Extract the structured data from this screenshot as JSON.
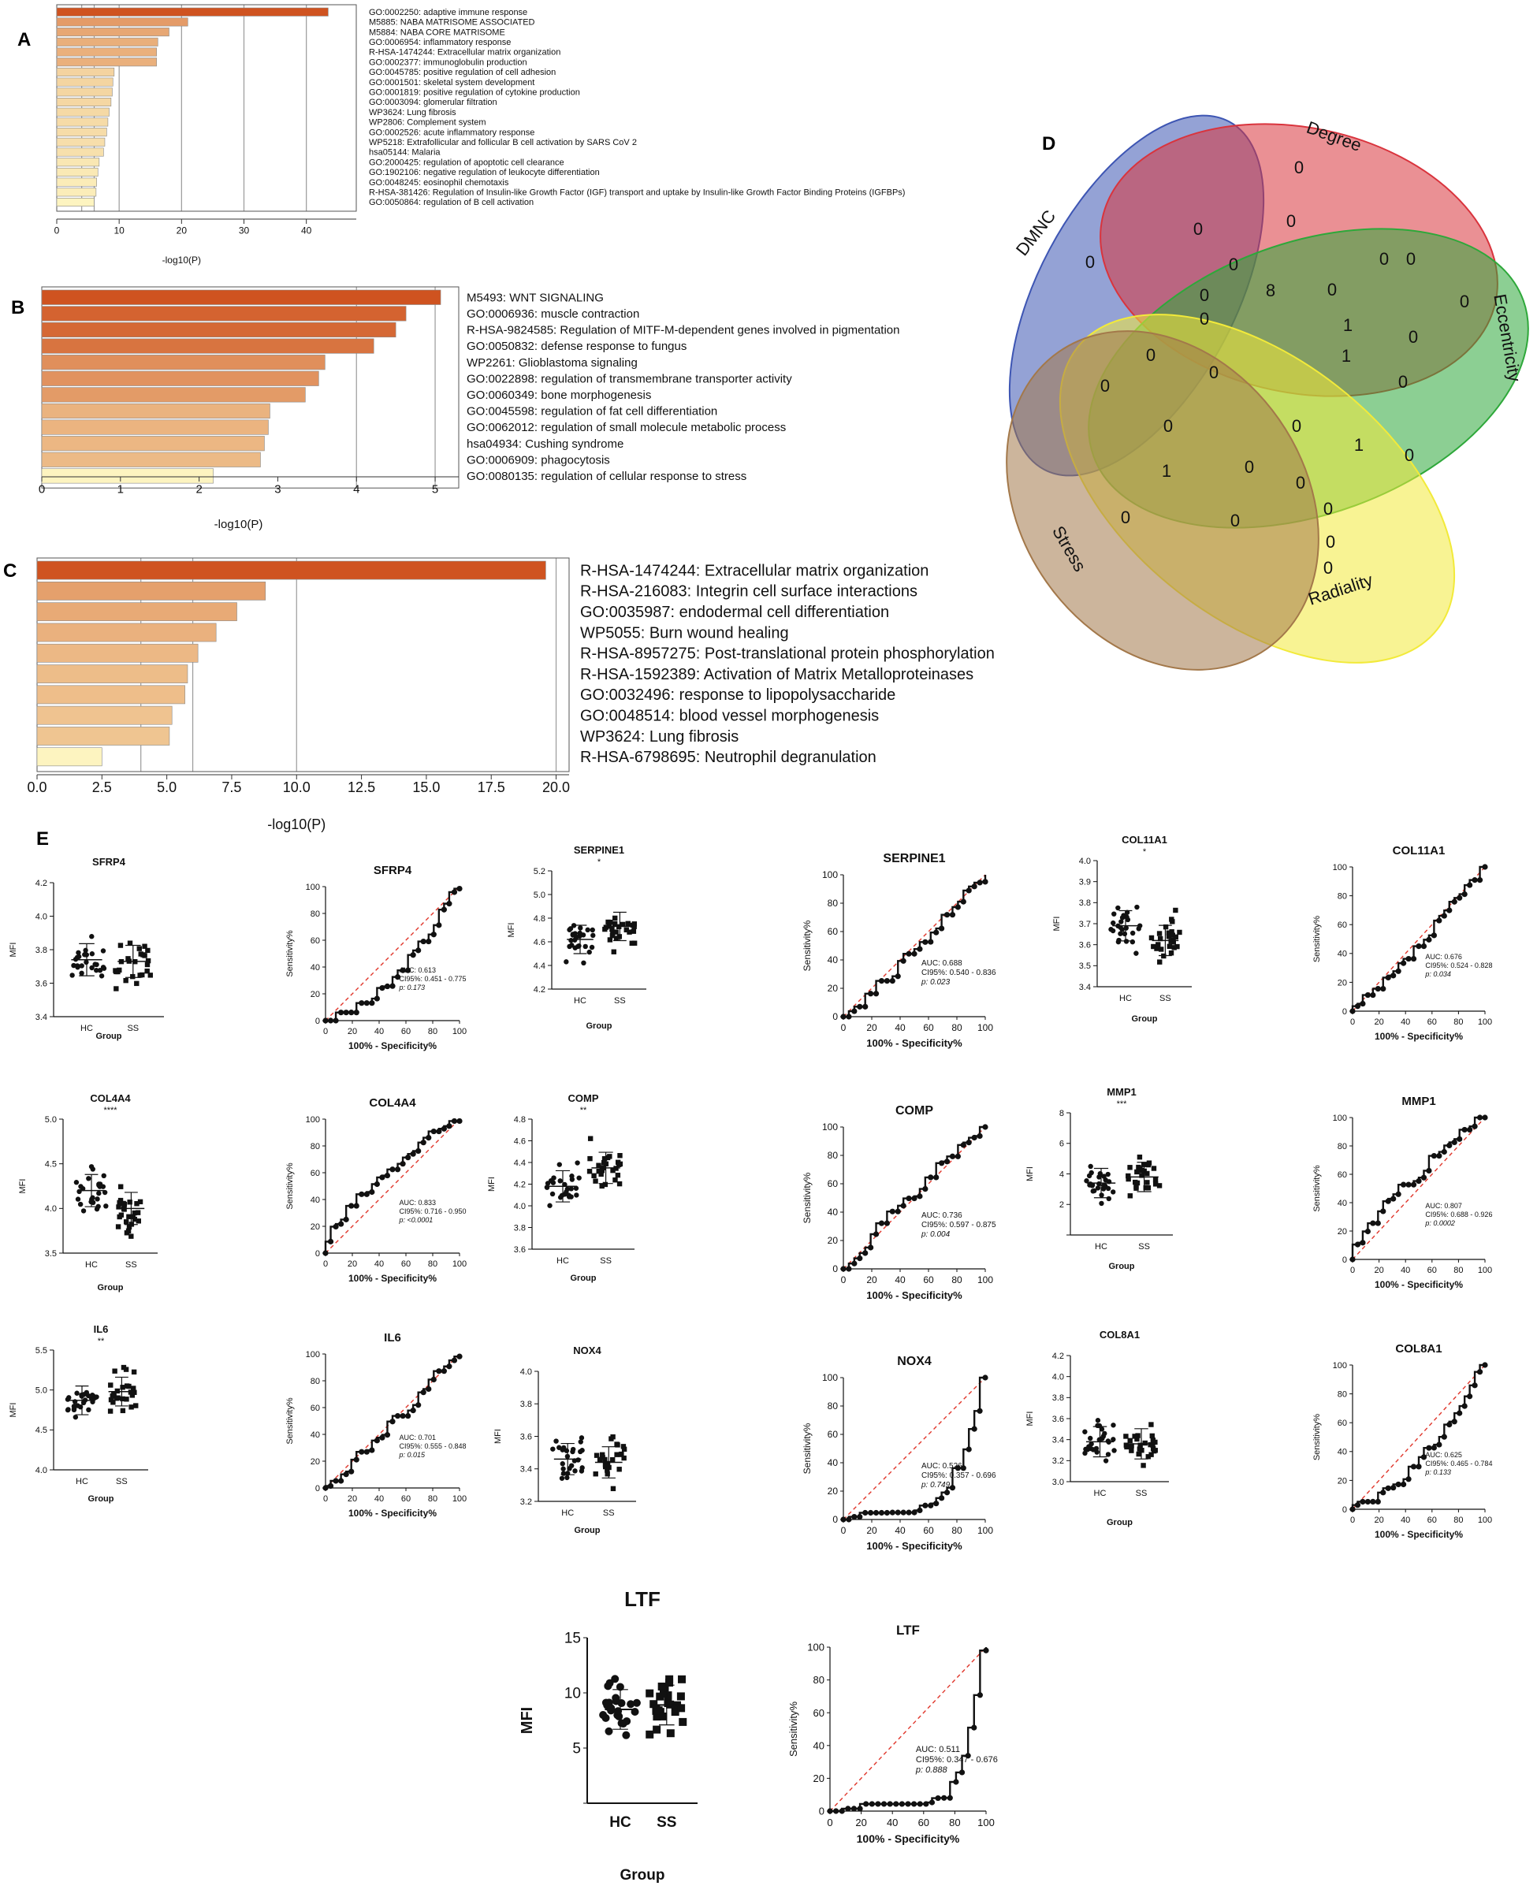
{
  "panel_letters": {
    "A": "A",
    "B": "B",
    "C": "C",
    "D": "D",
    "E": "E"
  },
  "chart_data": [
    {
      "id": "A",
      "type": "bar",
      "orientation": "horizontal",
      "xlabel": "-log10(P)",
      "xlim": [
        0,
        48
      ],
      "xticks": [
        0,
        10,
        20,
        30,
        40
      ],
      "gridlines": [
        4,
        6,
        10,
        20,
        30,
        40
      ],
      "categories": [
        "GO:0002250: adaptive immune response",
        "M5885: NABA MATRISOME ASSOCIATED",
        "M5884: NABA CORE MATRISOME",
        "GO:0006954: inflammatory response",
        "R-HSA-1474244: Extracellular matrix organization",
        "GO:0002377: immunoglobulin production",
        "GO:0045785: positive regulation of cell adhesion",
        "GO:0001501: skeletal system development",
        "GO:0001819: positive regulation of cytokine production",
        "GO:0003094: glomerular filtration",
        "WP3624: Lung fibrosis",
        "WP2806: Complement system",
        "GO:0002526: acute inflammatory response",
        "WP5218: Extrafollicular and follicular B cell activation by SARS CoV 2",
        "hsa05144: Malaria",
        "GO:2000425: regulation of apoptotic cell clearance",
        "GO:1902106: negative regulation of leukocyte differentiation",
        "GO:0048245: eosinophil chemotaxis",
        "R-HSA-381426: Regulation of Insulin-like Growth Factor (IGF) transport and uptake by Insulin-like Growth Factor Binding Proteins (IGFBPs)",
        "GO:0050864: regulation of B cell activation"
      ],
      "values": [
        43.5,
        21,
        18,
        16.2,
        16,
        16,
        9.2,
        9,
        8.9,
        8.7,
        8.4,
        8.2,
        8,
        7.7,
        7.5,
        6.8,
        6.6,
        6.4,
        6.3,
        6
      ]
    },
    {
      "id": "B",
      "type": "bar",
      "orientation": "horizontal",
      "xlabel": "-log10(P)",
      "xlim": [
        0,
        5.3
      ],
      "xticks": [
        0,
        1,
        2,
        3,
        4,
        5
      ],
      "gridlines": [
        4,
        5
      ],
      "categories": [
        "M5493: WNT SIGNALING",
        "GO:0006936: muscle contraction",
        "R-HSA-9824585: Regulation of MITF-M-dependent genes involved in pigmentation",
        "GO:0050832: defense response to fungus",
        "WP2261: Glioblastoma signaling",
        "GO:0022898: regulation of transmembrane transporter activity",
        "GO:0060349: bone morphogenesis",
        "GO:0045598: regulation of fat cell differentiation",
        "GO:0062012: regulation of small molecule metabolic process",
        "hsa04934: Cushing syndrome",
        "GO:0006909: phagocytosis",
        "GO:0080135: regulation of cellular response to stress"
      ],
      "values": [
        5.07,
        4.63,
        4.5,
        4.22,
        3.6,
        3.52,
        3.35,
        2.9,
        2.88,
        2.83,
        2.78,
        2.18
      ]
    },
    {
      "id": "C",
      "type": "bar",
      "orientation": "horizontal",
      "xlabel": "-log10(P)",
      "xlim": [
        0,
        20.5
      ],
      "xticks": [
        0.0,
        2.5,
        5.0,
        7.5,
        10.0,
        12.5,
        15.0,
        17.5,
        20.0
      ],
      "xticklabels": [
        "0.0",
        "2.5",
        "5.0",
        "7.5",
        "10.0",
        "12.5",
        "15.0",
        "17.5",
        "20.0"
      ],
      "gridlines": [
        4,
        6,
        10,
        20
      ],
      "categories": [
        "R-HSA-1474244: Extracellular matrix organization",
        "R-HSA-216083: Integrin cell surface interactions",
        "GO:0035987: endodermal cell differentiation",
        "WP5055: Burn wound healing",
        "R-HSA-8957275: Post-translational protein phosphorylation",
        "R-HSA-1592389: Activation of Matrix Metalloproteinases",
        "GO:0032496: response to lipopolysaccharide",
        "GO:0048514: blood vessel morphogenesis",
        "WP3624: Lung fibrosis",
        "R-HSA-6798695: Neutrophil degranulation"
      ],
      "values": [
        19.6,
        8.8,
        7.7,
        6.9,
        6.2,
        5.8,
        5.7,
        5.2,
        5.1,
        2.5
      ]
    }
  ],
  "venn": {
    "sets": [
      {
        "name": "DMNC",
        "color": "#3d55b3"
      },
      {
        "name": "Degree",
        "color": "#d9343d"
      },
      {
        "name": "Eccentricity",
        "color": "#2ea83a"
      },
      {
        "name": "Radiality",
        "color": "#f2ea3a"
      },
      {
        "name": "Stress",
        "color": "#a3784a"
      }
    ],
    "counts": [
      "0",
      "0",
      "0",
      "0",
      "0",
      "0",
      "0",
      "0",
      "0",
      "0",
      "1",
      "0",
      "0",
      "8",
      "1",
      "0",
      "0",
      "0",
      "0",
      "0",
      "0",
      "1",
      "0",
      "0",
      "1",
      "0",
      "0",
      "0",
      "0",
      "0",
      "0"
    ]
  },
  "scatter_labels": {
    "group_label": "Group",
    "y_label": "MFI",
    "hc": "HC",
    "ss": "SS"
  },
  "roc_labels": {
    "x_label": "100% - Specificity%",
    "y_label": "Sensitivity%"
  },
  "genes": [
    {
      "name": "SFRP4",
      "ylim": [
        3.4,
        4.2
      ],
      "yticks": [
        "3.4",
        "3.6",
        "3.8",
        "4.0",
        "4.2"
      ],
      "sig": "",
      "hc_mean": 3.74,
      "ss_mean": 3.73,
      "auc": "AUC: 0.613",
      "ci": "CI95%: 0.451 - 0.775",
      "p": "p: 0.173"
    },
    {
      "name": "SERPINE1",
      "ylim": [
        4.2,
        5.2
      ],
      "yticks": [
        "4.2",
        "4.4",
        "4.6",
        "4.8",
        "5.0",
        "5.2"
      ],
      "sig": "*",
      "hc_mean": 4.62,
      "ss_mean": 4.73,
      "auc": "AUC: 0.688",
      "ci": "CI95%: 0.540 - 0.836",
      "p": "p: 0.023"
    },
    {
      "name": "COL11A1",
      "ylim": [
        3.4,
        4.0
      ],
      "yticks": [
        "3.4",
        "3.5",
        "3.6",
        "3.7",
        "3.8",
        "3.9",
        "4.0"
      ],
      "sig": "*",
      "hc_mean": 3.69,
      "ss_mean": 3.62,
      "auc": "AUC: 0.676",
      "ci": "CI95%: 0.524 - 0.828",
      "p": "p: 0.034"
    },
    {
      "name": "COL4A4",
      "ylim": [
        3.5,
        5.0
      ],
      "yticks": [
        "3.5",
        "4.0",
        "4.5",
        "5.0"
      ],
      "sig": "****",
      "hc_mean": 4.2,
      "ss_mean": 4.0,
      "auc": "AUC: 0.833",
      "ci": "CI95%: 0.716 - 0.950",
      "p": "p: <0.0001"
    },
    {
      "name": "COMP",
      "ylim": [
        3.6,
        4.8
      ],
      "yticks": [
        "3.6",
        "3.8",
        "4.0",
        "4.2",
        "4.4",
        "4.6",
        "4.8"
      ],
      "sig": "**",
      "hc_mean": 4.18,
      "ss_mean": 4.35,
      "auc": "AUC: 0.736",
      "ci": "CI95%: 0.597 - 0.875",
      "p": "p: 0.004"
    },
    {
      "name": "MMP1",
      "ylim": [
        0,
        8
      ],
      "yticks": [
        "",
        "2",
        "4",
        "6",
        "8"
      ],
      "sig": "***",
      "hc_mean": 3.4,
      "ss_mean": 3.8,
      "auc": "AUC: 0.807",
      "ci": "CI95%: 0.688 - 0.926",
      "p": "p: 0.0002"
    },
    {
      "name": "IL6",
      "ylim": [
        4.0,
        5.5
      ],
      "yticks": [
        "4.0",
        "4.5",
        "5.0",
        "5.5"
      ],
      "sig": "**",
      "hc_mean": 4.87,
      "ss_mean": 4.98,
      "auc": "AUC: 0.701",
      "ci": "CI95%: 0.555 - 0.848",
      "p": "p: 0.015"
    },
    {
      "name": "NOX4",
      "ylim": [
        3.2,
        4.0
      ],
      "yticks": [
        "3.2",
        "3.4",
        "3.6",
        "3.8",
        "4.0"
      ],
      "sig": "",
      "hc_mean": 3.46,
      "ss_mean": 3.44,
      "auc": "AUC: 0.526",
      "ci": "CI95%: 0.357 - 0.696",
      "p": "p: 0.749"
    },
    {
      "name": "COL8A1",
      "ylim": [
        3.0,
        4.2
      ],
      "yticks": [
        "3.0",
        "3.2",
        "3.4",
        "3.6",
        "3.8",
        "4.0",
        "4.2"
      ],
      "sig": "",
      "hc_mean": 3.38,
      "ss_mean": 3.36,
      "auc": "AUC: 0.625",
      "ci": "CI95%: 0.465 - 0.784",
      "p": "p: 0.133"
    },
    {
      "name": "LTF",
      "ylim": [
        0,
        15
      ],
      "yticks": [
        "",
        "5",
        "10",
        "15"
      ],
      "sig": "",
      "hc_mean": 8.5,
      "ss_mean": 8.9,
      "auc": "AUC: 0.511",
      "ci": "CI95%: 0.347 - 0.676",
      "p": "p: 0.888"
    }
  ],
  "axis_ticks_100": [
    "0",
    "20",
    "40",
    "60",
    "80",
    "100"
  ]
}
